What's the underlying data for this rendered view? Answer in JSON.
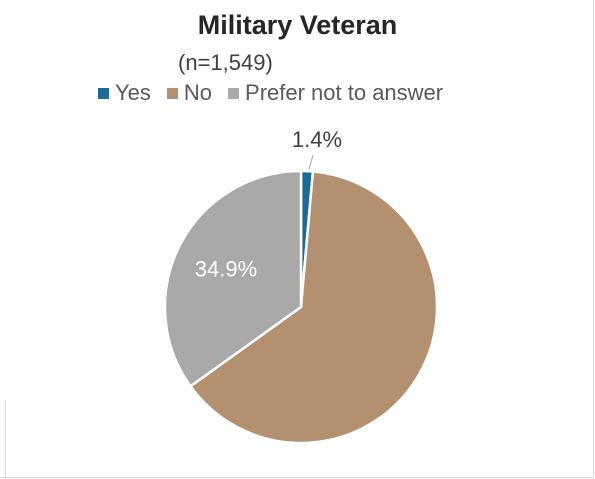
{
  "chart_data": {
    "type": "pie",
    "title": "Military Veteran",
    "subtitle": "(n=1,549)",
    "legend_position": "top",
    "slices": [
      {
        "name": "Yes",
        "value": 1.4,
        "label": "1.4%",
        "color": "#1b6b9a"
      },
      {
        "name": "No",
        "value": 63.7,
        "label": "",
        "color": "#b39170"
      },
      {
        "name": "Prefer not to answer",
        "value": 34.9,
        "label": "34.9%",
        "color": "#a9a9a9"
      }
    ]
  }
}
